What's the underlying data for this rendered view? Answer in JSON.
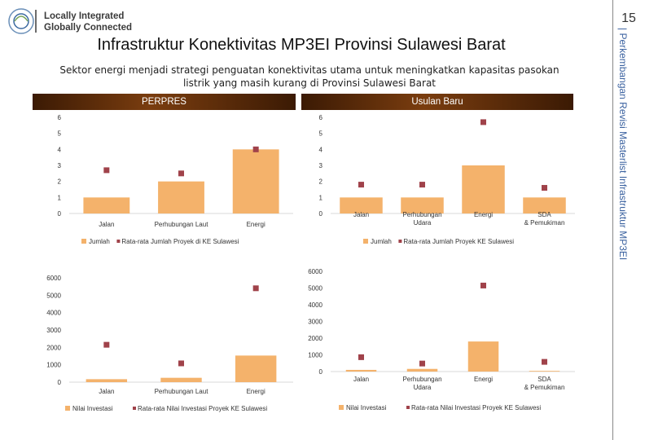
{
  "logo": {
    "line1": "Locally Integrated",
    "line2": "Globally Connected"
  },
  "page_number": "15",
  "sidebar_text": "| Perkembangan Revisi Masterlist Infrastruktur MP3EI",
  "title": "Infrastruktur Konektivitas MP3EI Provinsi Sulawesi Barat",
  "subtitle": "Sektor energi menjadi strategi penguatan konektivitas utama untuk meningkatkan kapasitas pasokan listrik yang masih kurang di Provinsi Sulawesi Barat",
  "bands": {
    "left": "PERPRES",
    "right": "Usulan Baru"
  },
  "colors": {
    "bar": "#f4b26b",
    "marker": "#a0424a"
  },
  "chart_data": [
    {
      "type": "bar",
      "categories": [
        "Jalan",
        "Perhubungan Laut",
        "Energi"
      ],
      "series": [
        {
          "name": "Jumlah",
          "kind": "bar",
          "values": [
            1,
            2,
            4
          ]
        },
        {
          "name": "Rata-rata Jumlah Proyek di KE Sulawesi",
          "kind": "marker",
          "values": [
            2.7,
            2.5,
            4
          ]
        }
      ],
      "ylim": [
        0,
        6
      ],
      "yticks": [
        0,
        1,
        2,
        3,
        4,
        5,
        6
      ]
    },
    {
      "type": "bar",
      "categories": [
        "Jalan",
        "Perhubungan Udara",
        "Energi",
        "SDA & Pemukiman"
      ],
      "series": [
        {
          "name": "Jumlah",
          "kind": "bar",
          "values": [
            1,
            1,
            3,
            1
          ]
        },
        {
          "name": "Rata-rata Jumlah Proyek KE Sulawesi",
          "kind": "marker",
          "values": [
            1.8,
            1.8,
            5.7,
            1.6
          ]
        }
      ],
      "ylim": [
        0,
        6
      ],
      "yticks": [
        0,
        1,
        2,
        3,
        4,
        5,
        6
      ]
    },
    {
      "type": "bar",
      "categories": [
        "Jalan",
        "Perhubungan Laut",
        "Energi"
      ],
      "series": [
        {
          "name": "Nilai Investasi",
          "kind": "bar",
          "values": [
            170,
            250,
            1530
          ]
        },
        {
          "name": "Rata-rata Nilai Investasi Proyek KE Sulawesi",
          "kind": "marker",
          "values": [
            2150,
            1080,
            5400
          ]
        }
      ],
      "ylim": [
        0,
        6000
      ],
      "yticks": [
        0,
        1000,
        2000,
        3000,
        4000,
        5000,
        6000
      ]
    },
    {
      "type": "bar",
      "categories": [
        "Jalan",
        "Perhubungan Udara",
        "Energi",
        "SDA & Pemukiman"
      ],
      "series": [
        {
          "name": "Nilai Investasi",
          "kind": "bar",
          "values": [
            100,
            160,
            1800,
            40
          ]
        },
        {
          "name": "Rata-rata Nilai Investasi Proyek KE Sulawesi",
          "kind": "marker",
          "values": [
            860,
            480,
            5150,
            580
          ]
        }
      ],
      "ylim": [
        0,
        6000
      ],
      "yticks": [
        0,
        1000,
        2000,
        3000,
        4000,
        5000,
        6000
      ]
    }
  ]
}
